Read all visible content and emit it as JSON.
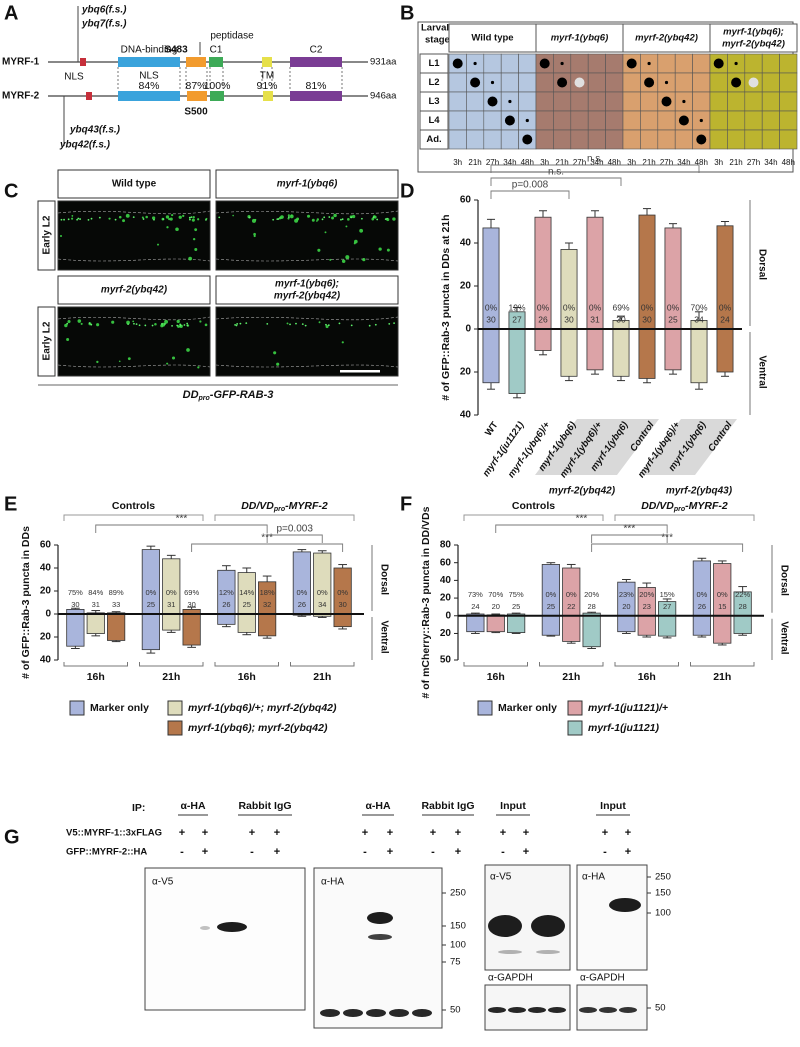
{
  "panel_a": {
    "label": "A",
    "proteins": [
      "MYRF-1",
      "MYRF-2"
    ],
    "mutations_top": [
      "ybq6(f.s.)",
      "ybq7(f.s.)"
    ],
    "mutations_bottom": [
      "ybq43(f.s.)",
      "ybq42(f.s.)"
    ],
    "domains": [
      "NLS",
      "DNA-binding",
      "NLS",
      "peptidase",
      "C1",
      "TM",
      "C2"
    ],
    "sites": [
      "S483",
      "S500"
    ],
    "lengths": [
      "931aa",
      "946aa"
    ],
    "identities": [
      "84%",
      "87%",
      "100%",
      "91%",
      "81%"
    ]
  },
  "panel_b": {
    "label": "B",
    "row_header": [
      "Larval",
      "stage"
    ],
    "groups": [
      "Wild type",
      "myrf-1(ybq6)",
      "myrf-2(ybq42)",
      [
        "myrf-1(ybq6);",
        "myrf-2(ybq42)"
      ]
    ],
    "stages": [
      "L1",
      "L2",
      "L3",
      "L4",
      "Ad."
    ],
    "times": [
      "3h",
      "21h",
      "27h",
      "34h",
      "48h"
    ]
  },
  "panel_c": {
    "label": "C",
    "genotypes": [
      "Wild type",
      "myrf-1(ybq6)",
      "myrf-2(ybq42)",
      [
        "myrf-1(ybq6);",
        "myrf-2(ybq42)"
      ]
    ],
    "stage": [
      "Early L2",
      "Early L2"
    ],
    "reporter": [
      "DD",
      "pro",
      "-GFP-RAB-3"
    ]
  },
  "chart_data": [
    {
      "type": "bar",
      "panel": "D",
      "ylabel": "# of GFP::Rab-3 puncta in DDs at 21h",
      "categories": [
        "WT",
        "myrf-1(ju1121)",
        "myrf-1(ybq6)/+",
        "myrf-1(ybq6)",
        "myrf-1(ybq6)/+",
        "myrf-1(ybq6)",
        "Control",
        "myrf-1(ybq6)/+",
        "myrf-1(ybq6)",
        "Control"
      ],
      "colors": [
        "#a9b5dc",
        "#a0cac6",
        "#dca3a7",
        "#dedcbc",
        "#dca3a7",
        "#dedcbc",
        "#b5774b",
        "#dca3a7",
        "#dedcbc",
        "#b5774b"
      ],
      "dorsal": [
        47,
        8,
        52,
        37,
        52,
        4,
        53,
        47,
        4,
        48
      ],
      "dorsal_err": [
        4,
        2,
        3,
        3,
        3,
        2,
        3,
        2,
        4,
        2
      ],
      "ventral": [
        -25,
        -30,
        -10,
        -22,
        -19,
        -22,
        -23,
        -19,
        -25,
        -20
      ],
      "ventral_err": [
        3,
        2,
        2,
        2,
        2,
        2,
        2,
        2,
        3,
        2
      ],
      "percent_labels": [
        "0%",
        "19%",
        "0%",
        "0%",
        "0%",
        "69%",
        "0%",
        "0%",
        "70%",
        "0%"
      ],
      "n": [
        30,
        27,
        26,
        30,
        31,
        30,
        30,
        25,
        34,
        24
      ],
      "group_labels": [
        "myrf-2(ybq42)",
        "myrf-2(ybq43)"
      ],
      "annotations": [
        "p=0.008",
        "n.s.",
        "n.s."
      ],
      "side_labels": [
        "Dorsal",
        "Ventral"
      ],
      "ylim": [
        -40,
        60
      ],
      "yticks": [
        {
          "value": -40,
          "label": "40"
        },
        {
          "value": -20,
          "label": "20"
        },
        0,
        20,
        40,
        60
      ]
    },
    {
      "type": "bar",
      "panel": "E",
      "ylabel": "# of GFP::Rab-3 puncta in DDs",
      "categories": [
        "16h",
        "21h",
        "16h",
        "21h"
      ],
      "controls_label": "Controls",
      "construct_label": [
        "DD/VD",
        "pro",
        "-MYRF-2"
      ],
      "series": [
        {
          "name": "Marker only",
          "color": "#a9b5dc",
          "dorsal": [
            4,
            56,
            38,
            54
          ],
          "dorsal_err": [
            1,
            3,
            4,
            2
          ],
          "ventral": [
            -28,
            -31,
            -9,
            -1
          ],
          "ventral_err": [
            2,
            3,
            2,
            1
          ],
          "percent_labels": [
            "75%",
            "0%",
            "12%",
            "0%"
          ],
          "n": [
            30,
            25,
            26,
            26
          ]
        },
        {
          "name": "myrf-1(ybq6)/+; myrf-2(ybq42)",
          "color": "#dedcbc",
          "dorsal": [
            1,
            48,
            36,
            53
          ],
          "dorsal_err": [
            2,
            3,
            4,
            2
          ],
          "ventral": [
            -17,
            -14,
            -16,
            -2
          ],
          "ventral_err": [
            2,
            2,
            2,
            1
          ],
          "percent_labels": [
            "84%",
            "0%",
            "14%",
            "0%"
          ],
          "n": [
            31,
            31,
            25,
            34
          ]
        },
        {
          "name": "myrf-1(ybq6); myrf-2(ybq42)",
          "color": "#b5774b",
          "dorsal": [
            1,
            4,
            28,
            40
          ],
          "dorsal_err": [
            1,
            2,
            5,
            3
          ],
          "ventral": [
            -23,
            -27,
            -19,
            -11
          ],
          "ventral_err": [
            1,
            2,
            2,
            2
          ],
          "percent_labels": [
            "89%",
            "69%",
            "18%",
            "0%"
          ],
          "n": [
            33,
            30,
            32,
            30
          ]
        }
      ],
      "annotations": [
        "***",
        "p=0.003",
        "***"
      ],
      "side_labels": [
        "Dorsal",
        "Ventral"
      ],
      "ylim": [
        -40,
        60
      ],
      "yticks": [
        {
          "value": -40,
          "label": "40"
        },
        {
          "value": -20,
          "label": "20"
        },
        0,
        20,
        40,
        60
      ]
    },
    {
      "type": "bar",
      "panel": "F",
      "ylabel": "# of mCherry::Rab-3 puncta in DD/VDs",
      "categories": [
        "16h",
        "21h",
        "16h",
        "21h"
      ],
      "controls_label": "Controls",
      "construct_label": [
        "DD/VD",
        "pro",
        "-MYRF-2"
      ],
      "series": [
        {
          "name": "Marker only",
          "color": "#a9b5dc",
          "dorsal": [
            2,
            58,
            38,
            62
          ],
          "dorsal_err": [
            1,
            2,
            3,
            3
          ],
          "ventral": [
            -18,
            -22,
            -18,
            -22
          ],
          "ventral_err": [
            2,
            1,
            2,
            2
          ],
          "percent_labels": [
            "73%",
            "0%",
            "23%",
            "0%"
          ],
          "n": [
            24,
            25,
            20,
            26
          ]
        },
        {
          "name": "myrf-1(ju1121)/+",
          "color": "#dca3a7",
          "dorsal": [
            1,
            54,
            32,
            59
          ],
          "dorsal_err": [
            1,
            4,
            5,
            3
          ],
          "ventral": [
            -18,
            -29,
            -22,
            -31
          ],
          "ventral_err": [
            1,
            2,
            2,
            2
          ],
          "percent_labels": [
            "70%",
            "0%",
            "20%",
            "0%"
          ],
          "n": [
            20,
            22,
            23,
            15
          ]
        },
        {
          "name": "myrf-1(ju1121)",
          "color": "#a0cac6",
          "dorsal": [
            2,
            3,
            16,
            27
          ],
          "dorsal_err": [
            1,
            1,
            3,
            6
          ],
          "ventral": [
            -19,
            -35,
            -23,
            -20
          ],
          "ventral_err": [
            1,
            2,
            2,
            2
          ],
          "percent_labels": [
            "75%",
            "20%",
            "15%",
            "22%"
          ],
          "n": [
            25,
            28,
            27,
            28
          ]
        }
      ],
      "annotations": [
        "***",
        "***",
        "***"
      ],
      "side_labels": [
        "Dorsal",
        "Ventral"
      ],
      "ylim": [
        -50,
        80
      ],
      "yticks": [
        {
          "value": -50,
          "label": "50"
        },
        {
          "value": -20,
          "label": "20"
        },
        0,
        20,
        40,
        60,
        80
      ]
    }
  ],
  "panel_g": {
    "label": "G",
    "ip_label": "IP:",
    "ip_headers": [
      "α-HA",
      "Rabbit IgG",
      "α-HA",
      "Rabbit IgG"
    ],
    "input_headers": [
      "Input",
      "Input"
    ],
    "constructs": [
      "V5::MYRF-1::3xFLAG",
      "GFP::MYRF-2::HA"
    ],
    "signs": [
      [
        "+",
        "+",
        "+",
        "+",
        "+",
        "+",
        "+",
        "+",
        "+",
        "+",
        "+",
        "+"
      ],
      [
        "-",
        "+",
        "-",
        "+",
        "-",
        "+",
        "-",
        "+",
        "-",
        "+",
        "-",
        "+"
      ]
    ],
    "blot_labels": [
      "α-V5",
      "α-HA",
      "α-V5",
      "α-HA",
      "α-GAPDH",
      "α-GAPDH"
    ],
    "markers_1": [
      250,
      150,
      100,
      75,
      50
    ],
    "markers_2": [
      250,
      150,
      100,
      50
    ]
  }
}
